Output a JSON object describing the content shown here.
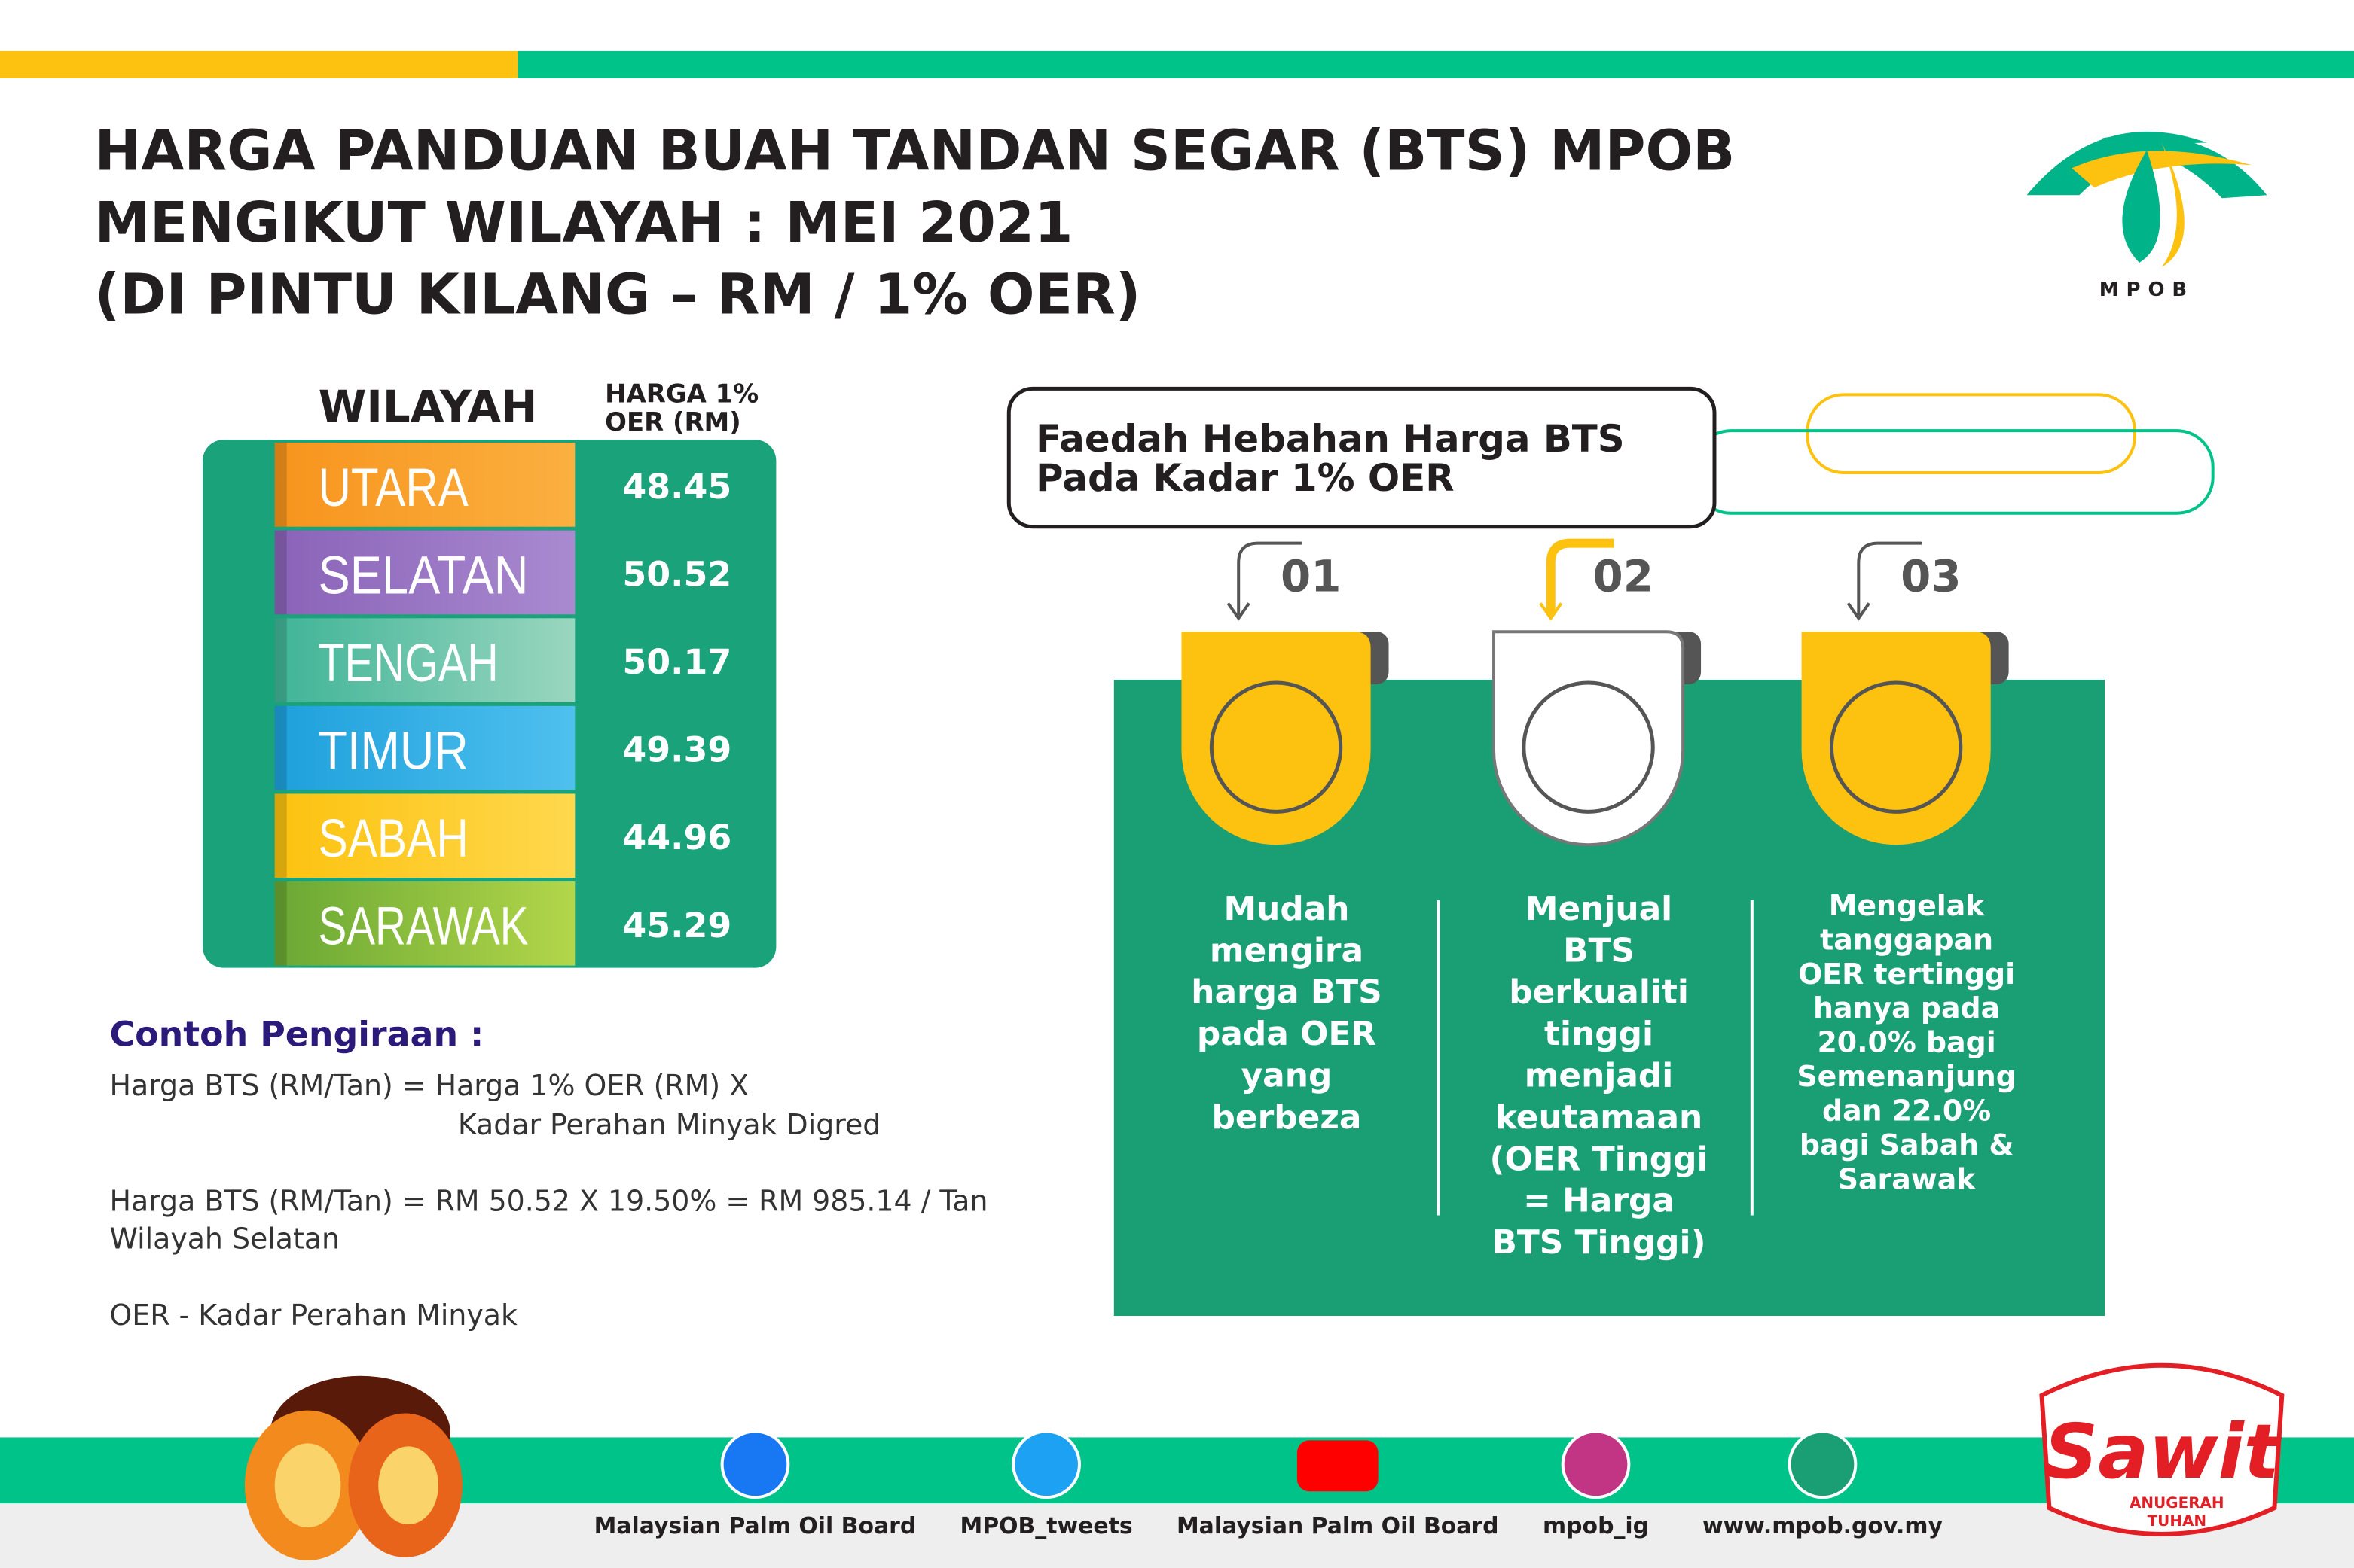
{
  "header": {
    "title": [
      "HARGA PANDUAN BUAH TANDAN SEGAR (BTS) MPOB",
      "MENGIKUT WILAYAH : MEI 2021",
      "(DI PINTU KILANG – RM / 1% OER)"
    ],
    "logo": "MPOB"
  },
  "table": {
    "region_header": "WILAYAH",
    "price_header": [
      "HARGA 1%",
      "OER (RM)"
    ],
    "rows": [
      [
        "UTARA",
        "48.45"
      ],
      [
        "SELATAN",
        "50.52"
      ],
      [
        "TENGAH",
        "50.17"
      ],
      [
        "TIMUR",
        "49.39"
      ],
      [
        "SABAH",
        "44.96"
      ],
      [
        "SARAWAK",
        "45.29"
      ]
    ]
  },
  "example": {
    "title": "Contoh Pengiraan :",
    "lines": [
      "Harga BTS (RM/Tan) = Harga 1% OER (RM) X",
      "Kadar Perahan Minyak Digred",
      "Harga BTS (RM/Tan) = RM 50.52 X 19.50% = RM 985.14 / Tan",
      "Wilayah Selatan",
      "OER - Kadar Perahan Minyak"
    ]
  },
  "benefits": {
    "title": [
      "Faedah Hebahan Harga BTS",
      "Pada Kadar 1% OER"
    ],
    "items": [
      {
        "number": "01",
        "lines": [
          "Mudah",
          "mengira",
          "harga BTS",
          "pada OER",
          "yang",
          "berbeza"
        ]
      },
      {
        "number": "02",
        "lines": [
          "Menjual",
          "BTS",
          "berkualiti",
          "tinggi",
          "menjadi",
          "keutamaan",
          "(OER Tinggi",
          "= Harga",
          "BTS Tinggi)"
        ]
      },
      {
        "number": "03",
        "lines": [
          "Mengelak",
          "tanggapan",
          "OER tertinggi",
          "hanya pada",
          "20.0% bagi",
          "Semenanjung",
          "dan 22.0%",
          "bagi Sabah &",
          "Sarawak"
        ]
      }
    ]
  },
  "footer": {
    "links": [
      "Malaysian Palm Oil Board",
      "MPOB_tweets",
      "Malaysian Palm Oil Board",
      "mpob_ig",
      "www.mpob.gov.my"
    ]
  },
  "campaign": {
    "title": "Sawit",
    "subtitle": [
      "ANUGERAH",
      "TUHAN"
    ]
  }
}
